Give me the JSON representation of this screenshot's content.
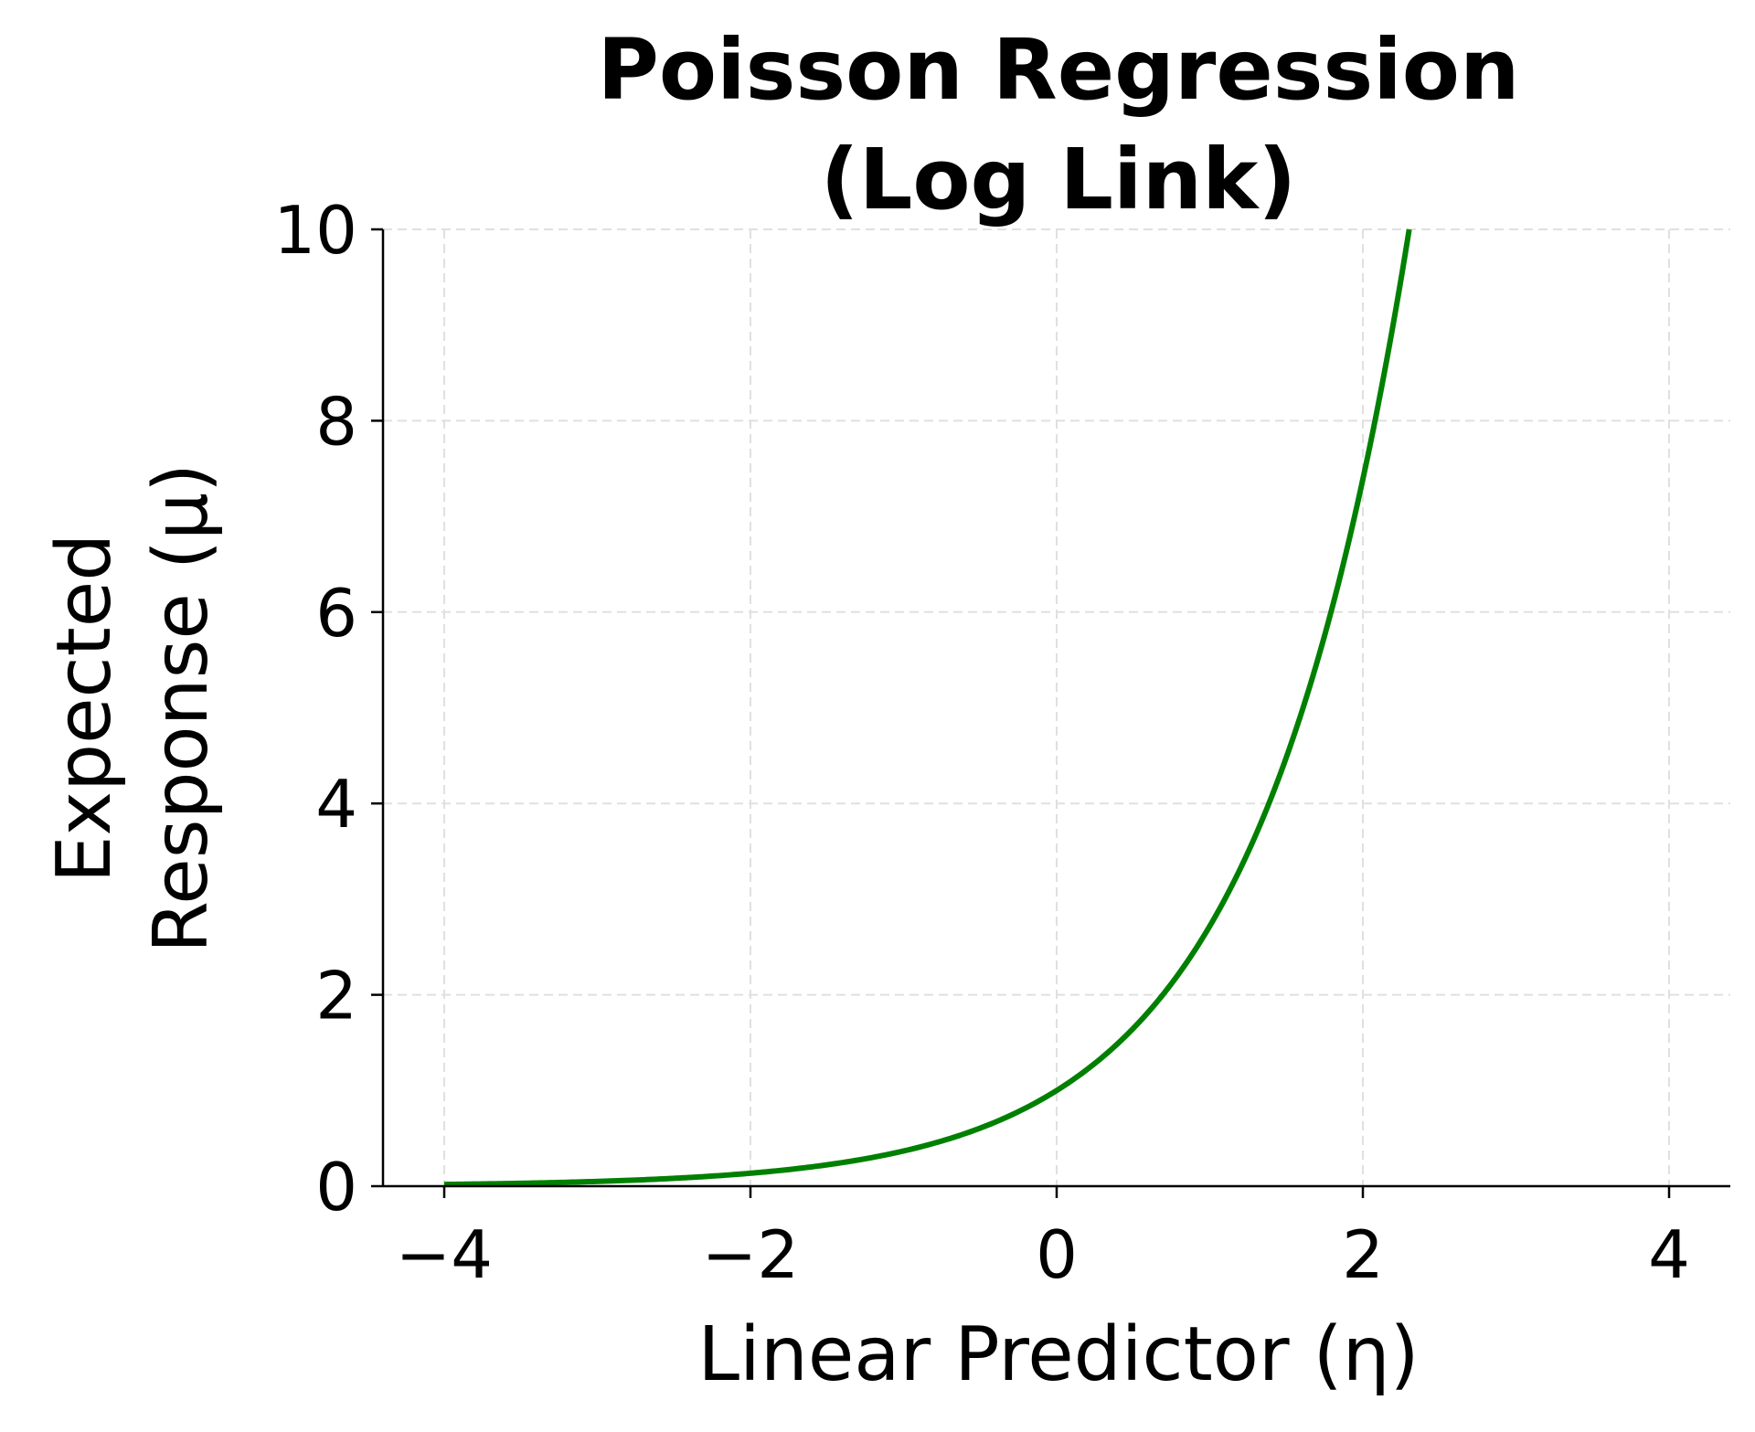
{
  "chart_data": {
    "type": "line",
    "title_lines": [
      "Poisson Regression",
      "(Log Link)"
    ],
    "xlabel": "Linear Predictor (η)",
    "ylabel_lines": [
      "Expected",
      "Response (μ)"
    ],
    "xlim": [
      -4.4,
      4.4
    ],
    "ylim": [
      0,
      10
    ],
    "xticks": [
      -4,
      -2,
      0,
      2,
      4
    ],
    "xtick_labels": [
      "−4",
      "−2",
      "0",
      "2",
      "4"
    ],
    "yticks": [
      0,
      2,
      4,
      6,
      8,
      10
    ],
    "ytick_labels": [
      "0",
      "2",
      "4",
      "6",
      "8",
      "10"
    ],
    "grid": true,
    "series": [
      {
        "function": "mu = exp(eta)",
        "x_range": [
          -4,
          2.3026
        ],
        "color": "#008000"
      }
    ]
  }
}
